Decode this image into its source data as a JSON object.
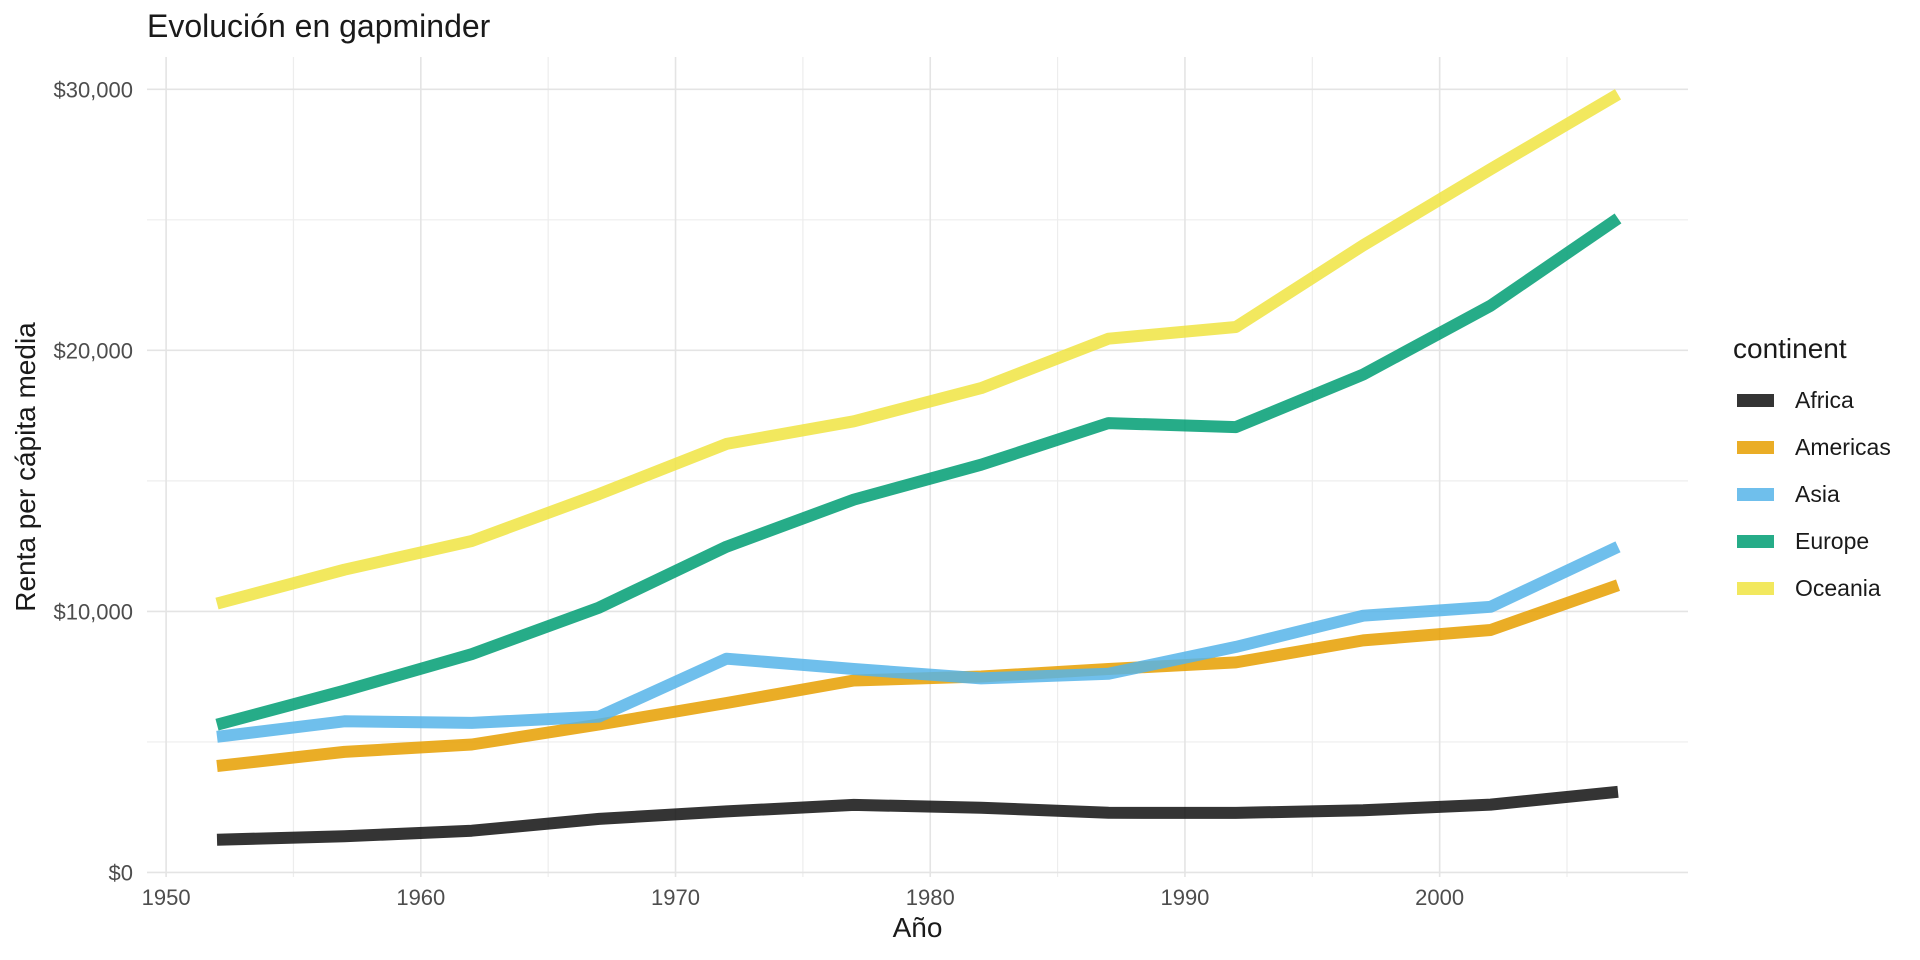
{
  "chart_data": {
    "type": "line",
    "title": "Evolución en gapminder",
    "xlabel": "Año",
    "ylabel": "Renta per cápita media",
    "legend_title": "continent",
    "legend_position": "right",
    "grid": "major-and-minor, light gray on white (theme_minimal)",
    "x": [
      1952,
      1957,
      1962,
      1967,
      1972,
      1977,
      1982,
      1987,
      1992,
      1997,
      2002,
      2007
    ],
    "series": [
      {
        "name": "Africa",
        "color": "#111111",
        "values": [
          1252.57,
          1385.24,
          1598.08,
          2050.36,
          2339.62,
          2585.94,
          2481.59,
          2282.67,
          2281.81,
          2378.76,
          2599.38,
          3089.03
        ]
      },
      {
        "name": "Americas",
        "color": "#E69F00",
        "values": [
          4079.06,
          4616.04,
          4901.54,
          5668.25,
          6491.33,
          7352.01,
          7506.74,
          7793.4,
          8044.93,
          8889.3,
          9287.68,
          11003.03
        ]
      },
      {
        "name": "Asia",
        "color": "#56B4E9",
        "values": [
          5195.48,
          5787.73,
          5729.37,
          5971.17,
          8187.47,
          7791.31,
          7434.13,
          7608.23,
          8639.69,
          9834.09,
          10174.09,
          12473.03
        ]
      },
      {
        "name": "Europe",
        "color": "#009E73",
        "values": [
          5661.06,
          6963.01,
          8365.49,
          10143.82,
          12479.58,
          14283.98,
          15617.9,
          17214.31,
          17061.57,
          19076.78,
          21711.73,
          25054.48
        ]
      },
      {
        "name": "Oceania",
        "color": "#F0E442",
        "values": [
          10298.09,
          11598.52,
          12696.45,
          14495.02,
          16417.33,
          17283.96,
          18554.71,
          20448.04,
          20894.05,
          24024.18,
          26938.78,
          29810.19
        ]
      }
    ],
    "xlim": [
      1949.25,
      2009.75
    ],
    "ylim": [
      -175,
      31238
    ],
    "x_ticks": [
      {
        "value": 1950,
        "label": "1950"
      },
      {
        "value": 1960,
        "label": "1960"
      },
      {
        "value": 1970,
        "label": "1970"
      },
      {
        "value": 1980,
        "label": "1980"
      },
      {
        "value": 1990,
        "label": "1990"
      },
      {
        "value": 2000,
        "label": "2000"
      }
    ],
    "y_ticks": [
      {
        "value": 0,
        "label": "$0"
      },
      {
        "value": 10000,
        "label": "$10,000"
      },
      {
        "value": 20000,
        "label": "$20,000"
      },
      {
        "value": 30000,
        "label": "$30,000"
      }
    ],
    "x_minor": [
      1955,
      1965,
      1975,
      1985,
      1995,
      2005
    ],
    "y_minor": [
      5000,
      15000,
      25000
    ],
    "line_width": 12,
    "line_opacity": 0.85,
    "colors": {
      "grid_major": "#e4e4e4",
      "grid_minor": "#ededed",
      "tick_label": "#4d4d4d",
      "text": "#1a1a1a",
      "background": "#ffffff"
    }
  }
}
